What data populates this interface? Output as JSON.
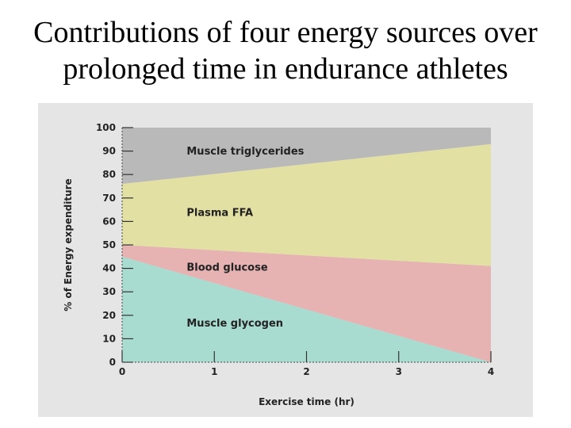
{
  "slide": {
    "title_line1": "Contributions of four energy sources over",
    "title_line2": "prolonged time in endurance athletes"
  },
  "chart_data": {
    "type": "area",
    "stacked": true,
    "x": [
      0,
      4
    ],
    "xlabel": "Exercise time (hr)",
    "ylabel": "% of Energy expenditure",
    "xlim": [
      0,
      4
    ],
    "ylim": [
      0,
      100
    ],
    "xticks": [
      0,
      1,
      2,
      3,
      4
    ],
    "yticks": [
      0,
      10,
      20,
      30,
      40,
      50,
      60,
      70,
      80,
      90,
      100
    ],
    "series": [
      {
        "name": "Muscle glycogen",
        "values": [
          45,
          0
        ],
        "color": "#a9dcd0"
      },
      {
        "name": "Blood glucose",
        "values": [
          5,
          41
        ],
        "color": "#e6b2b2"
      },
      {
        "name": "Plasma FFA",
        "values": [
          26,
          52
        ],
        "color": "#e3e0a4"
      },
      {
        "name": "Muscle triglycerides",
        "values": [
          24,
          7
        ],
        "color": "#b9b9b9"
      }
    ]
  }
}
